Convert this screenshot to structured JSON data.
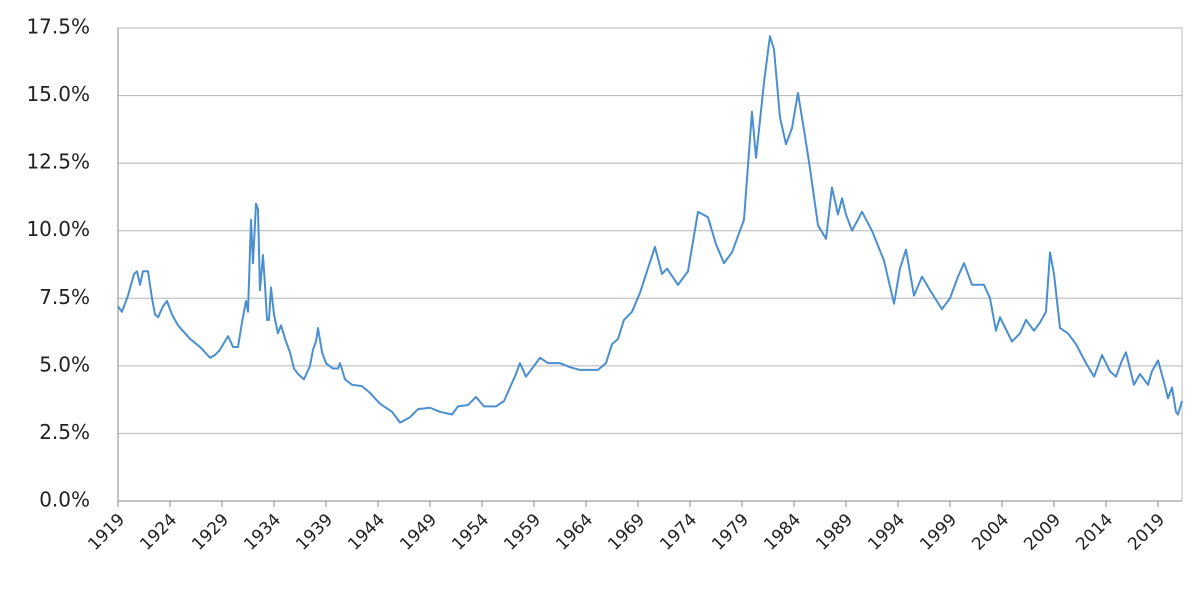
{
  "chart_data": {
    "type": "line",
    "x": [
      1919.0,
      1919.38,
      1919.96,
      1920.54,
      1920.83,
      1921.12,
      1921.4,
      1921.88,
      1922.27,
      1922.56,
      1922.85,
      1923.33,
      1923.71,
      1924.19,
      1924.77,
      1925.92,
      1926.88,
      1927.85,
      1928.33,
      1928.81,
      1929.58,
      1930.06,
      1930.54,
      1930.92,
      1931.31,
      1931.5,
      1931.79,
      1931.98,
      1932.27,
      1932.46,
      1932.65,
      1932.94,
      1933.13,
      1933.33,
      1933.52,
      1933.71,
      1934.0,
      1934.38,
      1934.67,
      1935.15,
      1935.54,
      1935.92,
      1936.31,
      1936.88,
      1937.46,
      1937.75,
      1938.04,
      1938.23,
      1938.62,
      1939.0,
      1939.67,
      1940.15,
      1940.35,
      1940.83,
      1941.5,
      1942.46,
      1943.23,
      1944.19,
      1945.35,
      1946.12,
      1947.08,
      1947.85,
      1949.0,
      1949.96,
      1951.12,
      1951.69,
      1952.65,
      1953.42,
      1954.19,
      1955.35,
      1956.12,
      1956.69,
      1957.27,
      1957.65,
      1958.23,
      1958.81,
      1959.58,
      1960.35,
      1961.5,
      1962.46,
      1963.42,
      1965.15,
      1965.92,
      1966.5,
      1967.08,
      1967.65,
      1968.42,
      1969.19,
      1970.63,
      1971.31,
      1971.79,
      1972.85,
      1973.81,
      1974.77,
      1975.73,
      1976.5,
      1977.27,
      1978.04,
      1979.19,
      1979.96,
      1980.35,
      1981.12,
      1981.69,
      1982.08,
      1982.65,
      1983.23,
      1983.81,
      1984.38,
      1985.06,
      1985.54,
      1986.31,
      1987.08,
      1987.65,
      1988.23,
      1988.62,
      1989.0,
      1989.58,
      1990.54,
      1991.5,
      1992.65,
      1993.62,
      1994.19,
      1994.77,
      1995.54,
      1996.31,
      1997.08,
      1998.23,
      1999.0,
      1999.77,
      2000.35,
      2001.12,
      2002.27,
      2002.85,
      2003.42,
      2003.81,
      2004.96,
      2005.73,
      2006.31,
      2007.08,
      2007.65,
      2008.23,
      2008.62,
      2009.0,
      2009.58,
      2010.35,
      2011.12,
      2012.08,
      2012.85,
      2013.62,
      2014.38,
      2014.96,
      2015.54,
      2015.92,
      2016.69,
      2017.27,
      2018.04,
      2018.42,
      2019.0,
      2019.58,
      2019.96,
      2020.35,
      2020.73,
      2020.92,
      2021.31
    ],
    "series": [
      {
        "color": "#4a8fd0",
        "values": [
          7.2,
          7.0,
          7.6,
          8.4,
          8.5,
          8.0,
          8.5,
          8.5,
          7.5,
          6.9,
          6.8,
          7.2,
          7.4,
          6.9,
          6.5,
          6.0,
          5.7,
          5.3,
          5.4,
          5.6,
          6.1,
          5.7,
          5.7,
          6.6,
          7.4,
          7.0,
          10.4,
          8.8,
          11.0,
          10.8,
          7.8,
          9.1,
          8.0,
          6.7,
          6.7,
          7.9,
          6.9,
          6.2,
          6.5,
          5.9,
          5.5,
          4.9,
          4.7,
          4.5,
          5.0,
          5.6,
          5.9,
          6.4,
          5.5,
          5.1,
          4.9,
          4.9,
          5.1,
          4.5,
          4.3,
          4.25,
          4.0,
          3.6,
          3.3,
          2.9,
          3.1,
          3.4,
          3.45,
          3.3,
          3.2,
          3.5,
          3.55,
          3.85,
          3.5,
          3.5,
          3.7,
          4.2,
          4.7,
          5.1,
          4.6,
          4.9,
          5.3,
          5.1,
          5.1,
          4.95,
          4.85,
          4.85,
          5.1,
          5.8,
          6.0,
          6.7,
          7.0,
          7.7,
          9.4,
          8.4,
          8.6,
          8.0,
          8.5,
          10.7,
          10.5,
          9.5,
          8.8,
          9.2,
          10.4,
          14.4,
          12.7,
          15.5,
          17.2,
          16.7,
          14.2,
          13.2,
          13.8,
          15.1,
          13.5,
          12.3,
          10.2,
          9.7,
          11.6,
          10.6,
          11.2,
          10.6,
          10.0,
          10.7,
          10.0,
          8.9,
          7.3,
          8.6,
          9.3,
          7.6,
          8.3,
          7.8,
          7.1,
          7.5,
          8.3,
          8.8,
          8.0,
          8.0,
          7.5,
          6.3,
          6.8,
          5.9,
          6.2,
          6.7,
          6.3,
          6.6,
          7.0,
          9.2,
          8.4,
          6.4,
          6.2,
          5.8,
          5.1,
          4.6,
          5.4,
          4.8,
          4.6,
          5.2,
          5.5,
          4.3,
          4.7,
          4.3,
          4.8,
          5.2,
          4.4,
          3.8,
          4.2,
          3.3,
          3.2,
          3.7
        ]
      }
    ],
    "xlim": [
      1919,
      2021.31
    ],
    "xticks": [
      1919,
      1924,
      1929,
      1934,
      1939,
      1944,
      1949,
      1954,
      1959,
      1964,
      1969,
      1974,
      1979,
      1984,
      1989,
      1994,
      1999,
      2004,
      2009,
      2014,
      2019
    ],
    "ylim": [
      0,
      17.5
    ],
    "yticks": [
      {
        "value": 0,
        "label": "0.0%"
      },
      {
        "value": 2.5,
        "label": "2.5%"
      },
      {
        "value": 5,
        "label": "5.0%"
      },
      {
        "value": 7.5,
        "label": "7.5%"
      },
      {
        "value": 10,
        "label": "10.0%"
      },
      {
        "value": 12.5,
        "label": "12.5%"
      },
      {
        "value": 15,
        "label": "15.0%"
      },
      {
        "value": 17.5,
        "label": "17.5%"
      }
    ],
    "grid": true
  }
}
